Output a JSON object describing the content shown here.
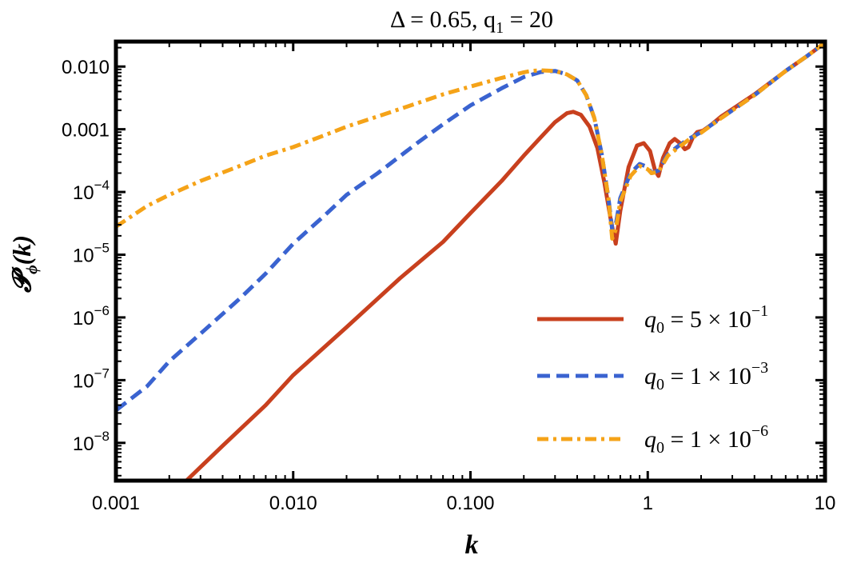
{
  "chart_data": {
    "type": "line",
    "title_main": "Δ = 0.65,  q",
    "title_sub": "1",
    "title_tail": " = 20",
    "xlabel": "k",
    "ylabel_main": "𝓟",
    "ylabel_sub": "ϕ",
    "ylabel_tail": "(k)",
    "x_scale": "log",
    "y_scale": "log",
    "xlim": [
      0.001,
      10
    ],
    "ylim": [
      2.5e-09,
      0.025
    ],
    "x_ticks": [
      {
        "value": 0.001,
        "label": "0.001"
      },
      {
        "value": 0.01,
        "label": "0.010"
      },
      {
        "value": 0.1,
        "label": "0.100"
      },
      {
        "value": 1,
        "label": "1"
      },
      {
        "value": 10,
        "label": "10"
      }
    ],
    "y_ticks": [
      {
        "value": 1e-08,
        "base": "10",
        "exp": "−8"
      },
      {
        "value": 1e-07,
        "base": "10",
        "exp": "−7"
      },
      {
        "value": 1e-06,
        "base": "10",
        "exp": "−6"
      },
      {
        "value": 1e-05,
        "base": "10",
        "exp": "−5"
      },
      {
        "value": 0.0001,
        "base": "10",
        "exp": "−4"
      },
      {
        "value": 0.001,
        "base": "0.001",
        "exp": ""
      },
      {
        "value": 0.01,
        "base": "0.010",
        "exp": ""
      }
    ],
    "grid": false,
    "legend_position": "bottom-right",
    "series": [
      {
        "name_prefix": "q",
        "name_sub": "0",
        "name_mid": " = 5 × 10",
        "name_exp": "−1",
        "color": "#C8401E",
        "style": "solid",
        "points": [
          [
            0.0025,
            2.5e-09
          ],
          [
            0.004,
            9e-09
          ],
          [
            0.007,
            4e-08
          ],
          [
            0.01,
            1.2e-07
          ],
          [
            0.02,
            7e-07
          ],
          [
            0.04,
            4.2e-06
          ],
          [
            0.07,
            1.6e-05
          ],
          [
            0.1,
            4.6e-05
          ],
          [
            0.15,
            0.00015
          ],
          [
            0.2,
            0.00038
          ],
          [
            0.25,
            0.00075
          ],
          [
            0.3,
            0.0013
          ],
          [
            0.35,
            0.0018
          ],
          [
            0.38,
            0.0019
          ],
          [
            0.42,
            0.0017
          ],
          [
            0.47,
            0.0011
          ],
          [
            0.52,
            0.0005
          ],
          [
            0.57,
            0.00014
          ],
          [
            0.62,
            3.5e-05
          ],
          [
            0.66,
            1.5e-05
          ],
          [
            0.7,
            5e-05
          ],
          [
            0.78,
            0.00025
          ],
          [
            0.87,
            0.00055
          ],
          [
            0.95,
            0.0006
          ],
          [
            1.03,
            0.00045
          ],
          [
            1.1,
            0.00022
          ],
          [
            1.15,
            0.00018
          ],
          [
            1.22,
            0.00035
          ],
          [
            1.33,
            0.0006
          ],
          [
            1.42,
            0.0007
          ],
          [
            1.52,
            0.0006
          ],
          [
            1.62,
            0.00048
          ],
          [
            1.7,
            0.00052
          ],
          [
            1.8,
            0.00075
          ],
          [
            1.9,
            0.0009
          ],
          [
            2.05,
            0.00095
          ],
          [
            2.3,
            0.0012
          ],
          [
            2.6,
            0.0016
          ],
          [
            3,
            0.0021
          ],
          [
            4,
            0.0036
          ],
          [
            6,
            0.0085
          ],
          [
            8,
            0.015
          ],
          [
            10,
            0.024
          ]
        ]
      },
      {
        "name_prefix": "q",
        "name_sub": "0",
        "name_mid": " = 1 × 10",
        "name_exp": "−3",
        "color": "#3A63D0",
        "style": "dashed",
        "points": [
          [
            0.001,
            3.3e-08
          ],
          [
            0.0015,
            8e-08
          ],
          [
            0.002,
            2e-07
          ],
          [
            0.003,
            5.5e-07
          ],
          [
            0.005,
            2e-06
          ],
          [
            0.007,
            5e-06
          ],
          [
            0.01,
            1.5e-05
          ],
          [
            0.015,
            4.2e-05
          ],
          [
            0.02,
            9e-05
          ],
          [
            0.03,
            0.0002
          ],
          [
            0.05,
            0.0006
          ],
          [
            0.07,
            0.0012
          ],
          [
            0.1,
            0.0024
          ],
          [
            0.15,
            0.0045
          ],
          [
            0.2,
            0.0068
          ],
          [
            0.25,
            0.0082
          ],
          [
            0.3,
            0.0085
          ],
          [
            0.35,
            0.0075
          ],
          [
            0.4,
            0.006
          ],
          [
            0.45,
            0.0035
          ],
          [
            0.5,
            0.0015
          ],
          [
            0.55,
            0.0004
          ],
          [
            0.6,
            8e-05
          ],
          [
            0.63,
            2.5e-05
          ],
          [
            0.66,
            3e-05
          ],
          [
            0.7,
            8e-05
          ],
          [
            0.8,
            0.0002
          ],
          [
            0.9,
            0.00028
          ],
          [
            1,
            0.00025
          ],
          [
            1.05,
            0.0002
          ],
          [
            1.15,
            0.00022
          ],
          [
            1.3,
            0.0004
          ],
          [
            1.5,
            0.00055
          ],
          [
            1.7,
            0.0007
          ],
          [
            2,
            0.0009
          ],
          [
            2.5,
            0.0014
          ],
          [
            3,
            0.002
          ],
          [
            4,
            0.0035
          ],
          [
            6,
            0.0085
          ],
          [
            8,
            0.015
          ],
          [
            10,
            0.024
          ]
        ]
      },
      {
        "name_prefix": "q",
        "name_sub": "0",
        "name_mid": " = 1 × 10",
        "name_exp": "−6",
        "color": "#F5A318",
        "style": "dashdot",
        "points": [
          [
            0.001,
            2.8e-05
          ],
          [
            0.0015,
            6e-05
          ],
          [
            0.002,
            9e-05
          ],
          [
            0.003,
            0.00015
          ],
          [
            0.005,
            0.00026
          ],
          [
            0.007,
            0.00038
          ],
          [
            0.01,
            0.00052
          ],
          [
            0.015,
            0.0008
          ],
          [
            0.02,
            0.0011
          ],
          [
            0.03,
            0.0016
          ],
          [
            0.05,
            0.0026
          ],
          [
            0.07,
            0.0036
          ],
          [
            0.1,
            0.0048
          ],
          [
            0.15,
            0.0066
          ],
          [
            0.2,
            0.0081
          ],
          [
            0.22,
            0.0085
          ],
          [
            0.25,
            0.0087
          ],
          [
            0.3,
            0.0085
          ],
          [
            0.35,
            0.0075
          ],
          [
            0.4,
            0.006
          ],
          [
            0.45,
            0.0035
          ],
          [
            0.5,
            0.0015
          ],
          [
            0.55,
            0.0004
          ],
          [
            0.6,
            8e-05
          ],
          [
            0.63,
            1.8e-05
          ],
          [
            0.66,
            2.5e-05
          ],
          [
            0.7,
            7e-05
          ],
          [
            0.8,
            0.00018
          ],
          [
            0.9,
            0.00026
          ],
          [
            1,
            0.00023
          ],
          [
            1.05,
            0.0002
          ],
          [
            1.15,
            0.00021
          ],
          [
            1.3,
            0.00038
          ],
          [
            1.5,
            0.00052
          ],
          [
            1.7,
            0.00068
          ],
          [
            2,
            0.00088
          ],
          [
            2.5,
            0.0014
          ],
          [
            3,
            0.002
          ],
          [
            4,
            0.0035
          ],
          [
            6,
            0.0085
          ],
          [
            8,
            0.015
          ],
          [
            10,
            0.024
          ]
        ]
      }
    ]
  }
}
